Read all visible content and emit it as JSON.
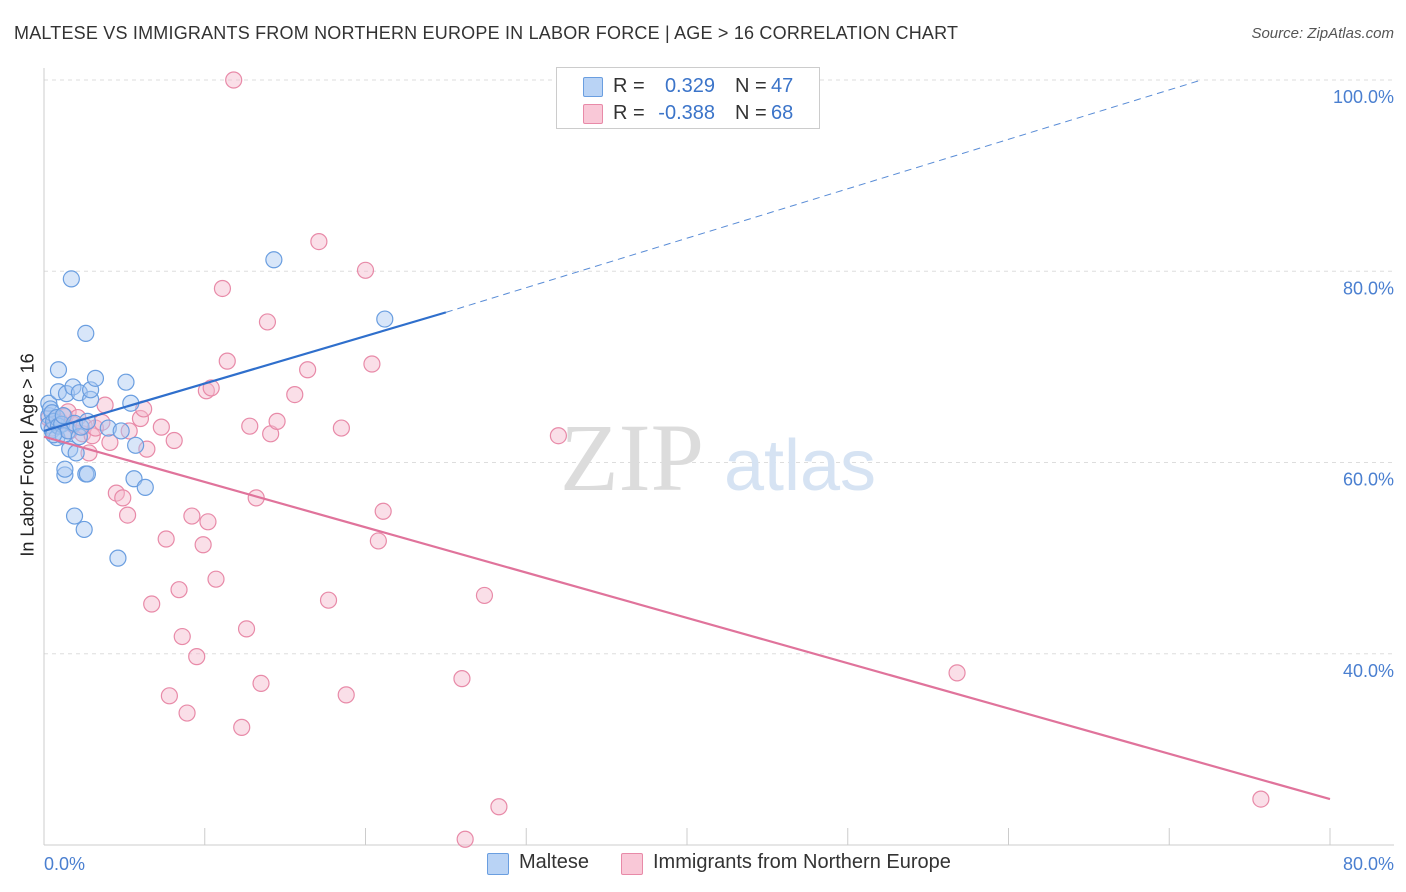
{
  "header": {
    "title": "MALTESE VS IMMIGRANTS FROM NORTHERN EUROPE IN LABOR FORCE | AGE > 16 CORRELATION CHART",
    "source": "Source: ZipAtlas.com"
  },
  "watermark": {
    "zip": "ZIP",
    "atlas": "atlas"
  },
  "legend": {
    "rows": [
      {
        "r_label": "R =",
        "r_value": "0.329",
        "n_label": "N =",
        "n_value": "47"
      },
      {
        "r_label": "R =",
        "r_value": "-0.388",
        "n_label": "N =",
        "n_value": "68"
      }
    ]
  },
  "bottom_legend": {
    "series1": "Maltese",
    "series2": "Immigrants from Northern Europe"
  },
  "colors": {
    "blue_fill": "#a9c8f2",
    "blue_stroke": "#6a9ee0",
    "blue_line": "#2f6fcc",
    "pink_fill": "#f5b8cb",
    "pink_stroke": "#e88aa8",
    "pink_line": "#e0739b",
    "tick_text": "#4a7fd0",
    "grid": "#dddddd"
  },
  "chart_data": {
    "type": "scatter",
    "title": "MALTESE VS IMMIGRANTS FROM NORTHERN EUROPE IN LABOR FORCE | AGE > 16 CORRELATION CHART",
    "xlabel": "",
    "ylabel": "In Labor Force | Age > 16",
    "xlim": [
      0,
      80
    ],
    "ylim": [
      20,
      100
    ],
    "x_tick_labels": [
      "0.0%",
      "80.0%"
    ],
    "y_ticks": [
      40,
      60,
      80,
      100
    ],
    "y_tick_labels": [
      "40.0%",
      "60.0%",
      "80.0%",
      "100.0%"
    ],
    "series": [
      {
        "name": "Maltese",
        "r": 0.329,
        "n": 47,
        "trend": {
          "x_start": 0,
          "y_start": 63.3,
          "x_solid_end": 25,
          "y_solid_end": 75.7,
          "x_dash_end": 72,
          "y_dash_end": 100
        },
        "points": [
          [
            0.3,
            64.9
          ],
          [
            0.3,
            66.2
          ],
          [
            0.3,
            63.9
          ],
          [
            0.4,
            65.6
          ],
          [
            0.5,
            65.2
          ],
          [
            0.5,
            63.4
          ],
          [
            0.6,
            64.3
          ],
          [
            0.8,
            64.7
          ],
          [
            0.8,
            62.6
          ],
          [
            0.9,
            63.8
          ],
          [
            0.9,
            69.7
          ],
          [
            0.9,
            67.4
          ],
          [
            1.1,
            64.0
          ],
          [
            1.2,
            62.8
          ],
          [
            1.2,
            64.9
          ],
          [
            1.3,
            58.7
          ],
          [
            1.3,
            59.3
          ],
          [
            1.4,
            67.2
          ],
          [
            1.5,
            63.3
          ],
          [
            1.6,
            61.4
          ],
          [
            1.7,
            79.2
          ],
          [
            1.8,
            67.9
          ],
          [
            1.9,
            54.4
          ],
          [
            1.9,
            64.1
          ],
          [
            2.0,
            61.0
          ],
          [
            2.2,
            62.7
          ],
          [
            2.2,
            67.3
          ],
          [
            2.3,
            63.7
          ],
          [
            2.5,
            53.0
          ],
          [
            2.6,
            73.5
          ],
          [
            2.6,
            58.8
          ],
          [
            2.7,
            58.8
          ],
          [
            2.7,
            64.3
          ],
          [
            2.9,
            66.6
          ],
          [
            2.9,
            67.6
          ],
          [
            3.2,
            68.8
          ],
          [
            4.0,
            63.6
          ],
          [
            4.6,
            50.0
          ],
          [
            4.8,
            63.3
          ],
          [
            5.1,
            68.4
          ],
          [
            5.4,
            66.2
          ],
          [
            5.6,
            58.3
          ],
          [
            5.7,
            61.8
          ],
          [
            6.3,
            57.4
          ],
          [
            14.3,
            81.2
          ],
          [
            21.2,
            75.0
          ],
          [
            0.6,
            62.9
          ]
        ]
      },
      {
        "name": "Immigrants from Northern Europe",
        "r": -0.388,
        "n": 68,
        "trend": {
          "x_start": 0,
          "y_start": 62.7,
          "x_end": 80,
          "y_end": 24.8
        },
        "points": [
          [
            0.3,
            64.6
          ],
          [
            0.5,
            63.6
          ],
          [
            0.7,
            64.1
          ],
          [
            0.9,
            63.9
          ],
          [
            1.0,
            64.3
          ],
          [
            1.3,
            64.8
          ],
          [
            1.5,
            65.3
          ],
          [
            1.6,
            63.3
          ],
          [
            1.8,
            64.0
          ],
          [
            2.1,
            64.7
          ],
          [
            2.4,
            63.0
          ],
          [
            2.5,
            63.8
          ],
          [
            2.8,
            61.0
          ],
          [
            3.0,
            62.8
          ],
          [
            3.2,
            63.6
          ],
          [
            3.6,
            64.2
          ],
          [
            3.8,
            66.0
          ],
          [
            4.1,
            62.1
          ],
          [
            4.5,
            56.8
          ],
          [
            4.9,
            56.3
          ],
          [
            5.2,
            54.5
          ],
          [
            5.3,
            63.3
          ],
          [
            6.0,
            64.6
          ],
          [
            6.2,
            65.6
          ],
          [
            6.4,
            61.4
          ],
          [
            6.7,
            45.2
          ],
          [
            7.3,
            63.7
          ],
          [
            7.6,
            52.0
          ],
          [
            7.8,
            35.6
          ],
          [
            8.1,
            62.3
          ],
          [
            8.4,
            46.7
          ],
          [
            8.6,
            41.8
          ],
          [
            8.9,
            33.8
          ],
          [
            9.2,
            54.4
          ],
          [
            9.5,
            39.7
          ],
          [
            9.9,
            51.4
          ],
          [
            10.1,
            67.5
          ],
          [
            10.2,
            53.8
          ],
          [
            10.4,
            67.8
          ],
          [
            10.7,
            47.8
          ],
          [
            11.1,
            78.2
          ],
          [
            11.4,
            70.6
          ],
          [
            11.8,
            100.0
          ],
          [
            12.3,
            32.3
          ],
          [
            12.6,
            42.6
          ],
          [
            12.8,
            63.8
          ],
          [
            13.2,
            56.3
          ],
          [
            13.5,
            36.9
          ],
          [
            13.9,
            74.7
          ],
          [
            14.1,
            63.0
          ],
          [
            14.5,
            64.3
          ],
          [
            15.6,
            67.1
          ],
          [
            16.4,
            69.7
          ],
          [
            17.1,
            83.1
          ],
          [
            17.7,
            45.6
          ],
          [
            18.5,
            63.6
          ],
          [
            18.8,
            35.7
          ],
          [
            20.0,
            80.1
          ],
          [
            20.4,
            70.3
          ],
          [
            20.8,
            51.8
          ],
          [
            21.1,
            54.9
          ],
          [
            26.0,
            37.4
          ],
          [
            26.2,
            20.6
          ],
          [
            27.4,
            46.1
          ],
          [
            28.3,
            24.0
          ],
          [
            32.0,
            62.8
          ],
          [
            56.8,
            38.0
          ],
          [
            75.7,
            24.8
          ]
        ]
      }
    ]
  }
}
